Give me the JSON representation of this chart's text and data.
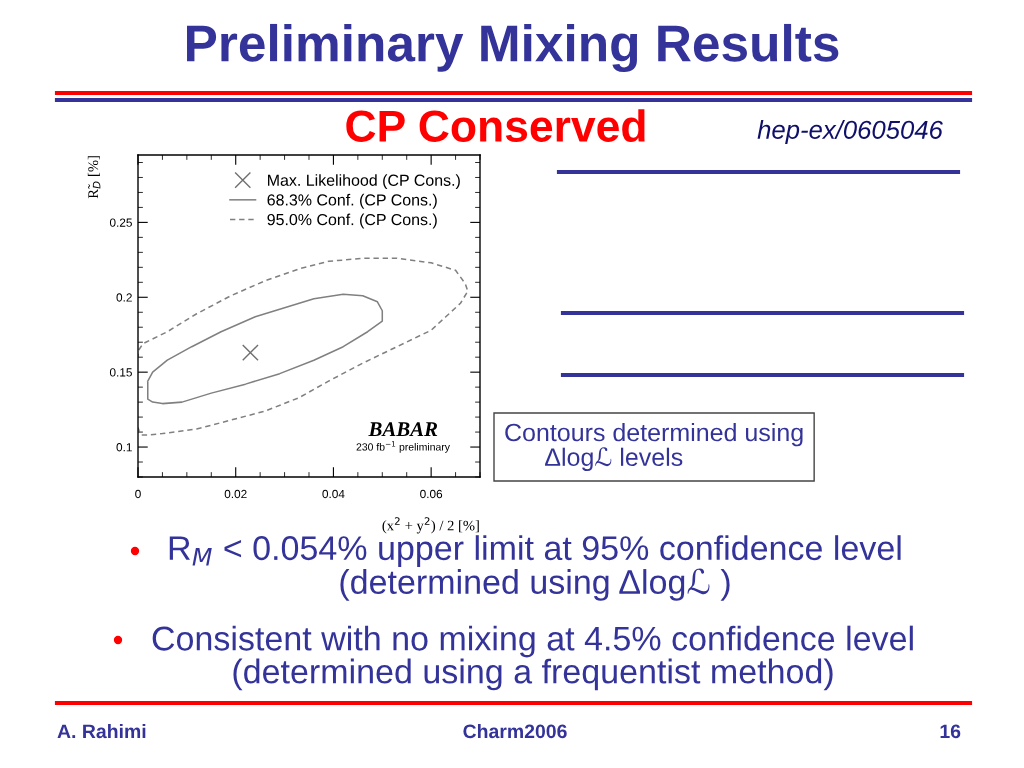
{
  "chart_data": {
    "type": "line",
    "title": "Preliminary Mixing Results",
    "subtitle": "CP Conserved",
    "xlabel": "(x$^{2}$ + y$^{2}$) / 2 [%]",
    "ylabel": "R̃$_{D}$ [%]",
    "xlim": [
      0,
      0.07
    ],
    "ylim": [
      0.08,
      0.295
    ],
    "xticks": [
      0,
      0.02,
      0.04,
      0.06
    ],
    "yticks": [
      0.1,
      0.15,
      0.2,
      0.25
    ],
    "legend": "top right",
    "series": [
      {
        "name": "Max. Likelihood (CP Cons.)",
        "type": "scatter",
        "marker": "cross",
        "color": "#707070",
        "x": [
          0.023
        ],
        "values": [
          0.163
        ]
      },
      {
        "name": "68.3% Conf. (CP Cons.)",
        "type": "line",
        "line_style": "solid",
        "color": "#808080",
        "x": [
          0.002,
          0.003,
          0.006,
          0.011,
          0.017,
          0.024,
          0.031,
          0.036,
          0.042,
          0.046,
          0.049,
          0.05,
          0.05,
          0.047,
          0.042,
          0.036,
          0.029,
          0.022,
          0.015,
          0.009,
          0.005,
          0.003,
          0.002,
          0.002
        ],
        "values": [
          0.144,
          0.15,
          0.158,
          0.167,
          0.177,
          0.187,
          0.194,
          0.199,
          0.202,
          0.201,
          0.197,
          0.191,
          0.184,
          0.177,
          0.167,
          0.158,
          0.149,
          0.142,
          0.136,
          0.13,
          0.129,
          0.13,
          0.132,
          0.143
        ]
      },
      {
        "name": "95.0% Conf. (CP Cons.)",
        "type": "line",
        "line_style": "dashed",
        "color": "#808080",
        "x": [
          0,
          0.0005,
          0.002,
          0.005,
          0.012,
          0.019,
          0.026,
          0.033,
          0.039,
          0.046,
          0.053,
          0.06,
          0.063,
          0.066,
          0.0675,
          0.067,
          0.065,
          0.06,
          0.053,
          0.046,
          0.039,
          0.033,
          0.026,
          0.019,
          0.012,
          0.006,
          0.001,
          0,
          0
        ],
        "values": [
          0.113,
          0.108,
          0.108,
          0.109,
          0.112,
          0.118,
          0.124,
          0.133,
          0.144,
          0.156,
          0.167,
          0.178,
          0.187,
          0.196,
          0.204,
          0.209,
          0.218,
          0.223,
          0.226,
          0.226,
          0.224,
          0.219,
          0.211,
          0.201,
          0.189,
          0.177,
          0.169,
          0.164,
          0.16
        ]
      }
    ],
    "annotations": [
      "hep-ex/0605046",
      "BABAR",
      "230 fb$^{−1}$ preliminary",
      "Contours determined using\n      Δlogℒ levels",
      "R$_{M}$ < 0.054% upper limit at 95% confidence level\n(determined using Δlogℒ )",
      "Consistent with no mixing at 4.5% confidence level\n(determined using a frequentist method)",
      "A. Rahimi",
      "Charm2006",
      "16"
    ]
  }
}
